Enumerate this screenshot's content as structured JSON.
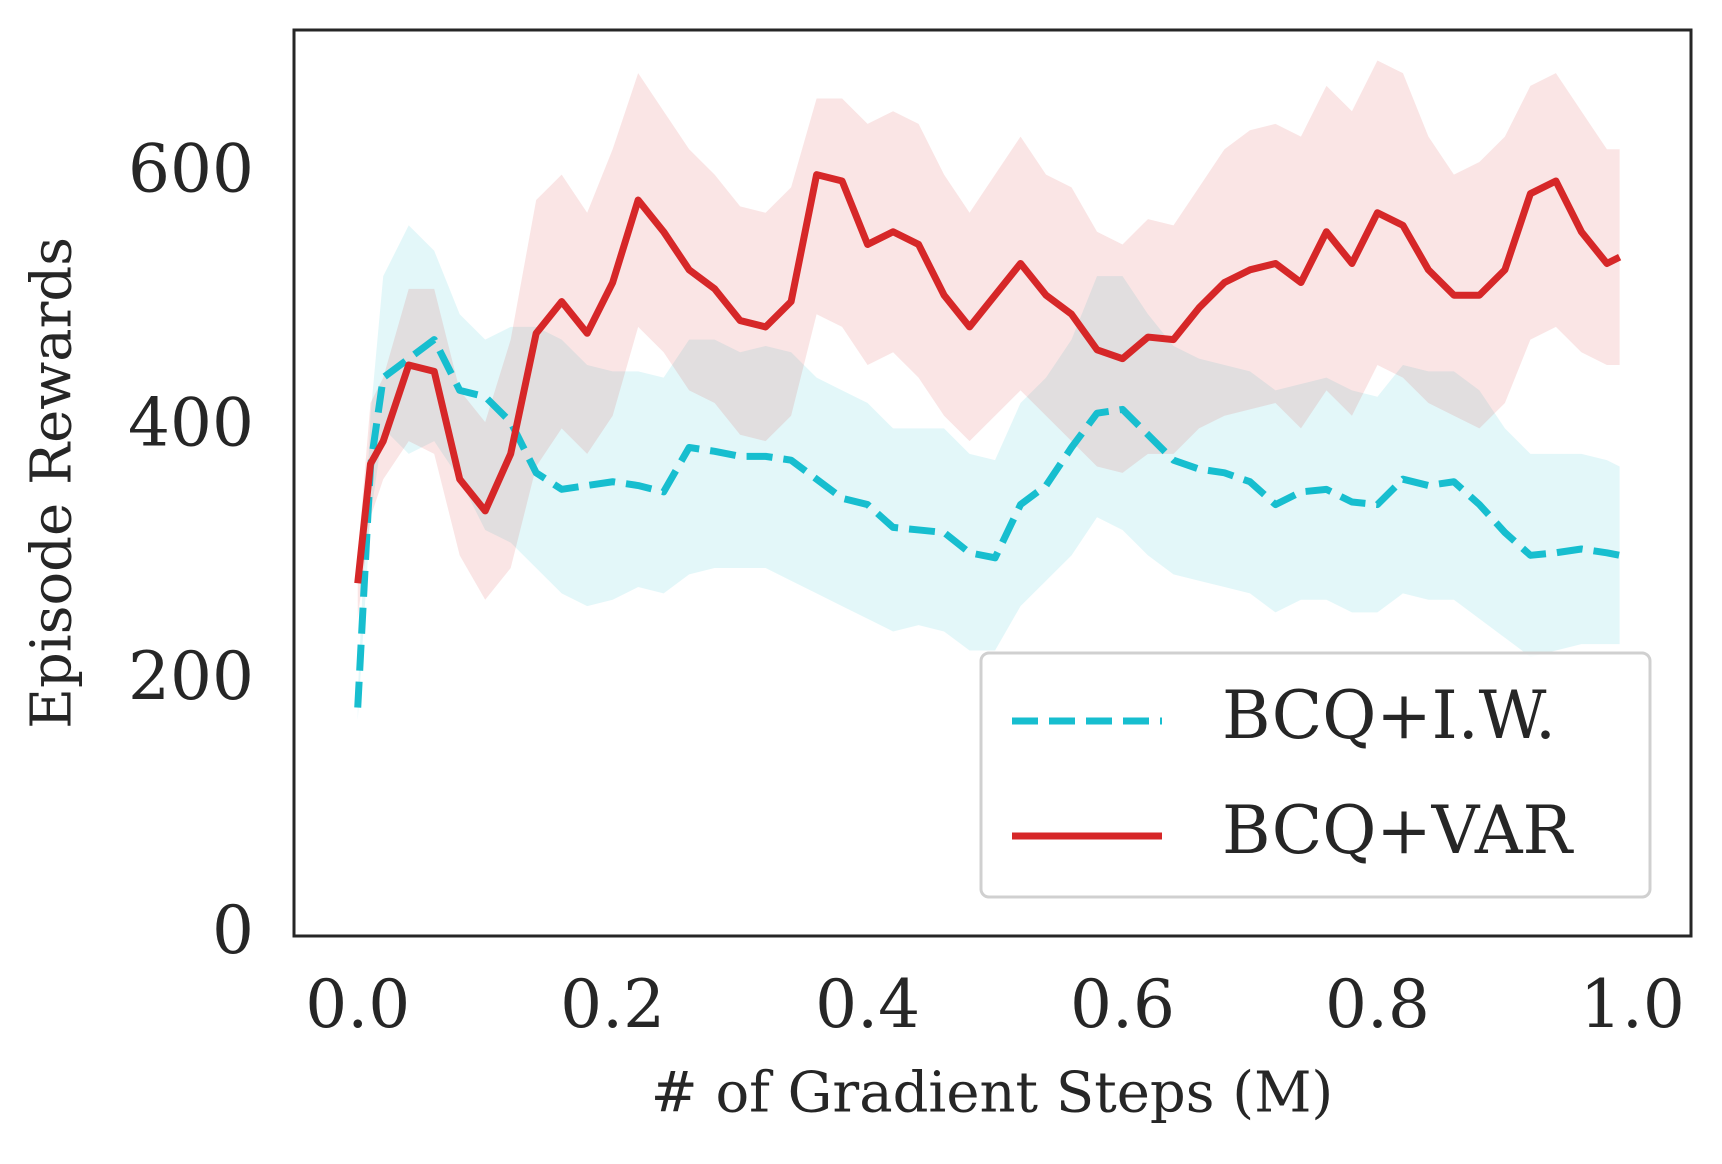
{
  "chart_data": {
    "type": "line",
    "xlabel": "# of Gradient Steps (M)",
    "ylabel": "Episode Rewards",
    "xlim": [
      -0.05,
      1.046
    ],
    "ylim": [
      0,
      714
    ],
    "xticks": [
      {
        "value": 0,
        "label": "0.0"
      },
      {
        "value": 0.2,
        "label": "0.2"
      },
      {
        "value": 0.4,
        "label": "0.4"
      },
      {
        "value": 0.6,
        "label": "0.6"
      },
      {
        "value": 0.8,
        "label": "0.8"
      },
      {
        "value": 1.0,
        "label": "1.0"
      }
    ],
    "yticks": [
      0,
      200,
      400,
      600
    ],
    "legend": "lower right",
    "x": [
      0,
      0.01,
      0.02,
      0.04,
      0.06,
      0.08,
      0.1,
      0.12,
      0.14,
      0.16,
      0.18,
      0.2,
      0.22,
      0.24,
      0.26,
      0.28,
      0.3,
      0.32,
      0.34,
      0.36,
      0.38,
      0.4,
      0.42,
      0.44,
      0.46,
      0.48,
      0.5,
      0.52,
      0.54,
      0.56,
      0.58,
      0.6,
      0.62,
      0.64,
      0.66,
      0.68,
      0.7,
      0.72,
      0.74,
      0.76,
      0.78,
      0.8,
      0.82,
      0.84,
      0.86,
      0.88,
      0.9,
      0.92,
      0.94,
      0.96,
      0.98,
      0.99
    ],
    "series": [
      {
        "name": "BCQ+I.W.",
        "color": "#17becf",
        "dash": true,
        "values": [
          180,
          370,
          440,
          455,
          470,
          430,
          425,
          405,
          365,
          352,
          355,
          358,
          355,
          350,
          385,
          382,
          378,
          378,
          375,
          360,
          345,
          340,
          322,
          320,
          318,
          302,
          298,
          340,
          355,
          385,
          412,
          415,
          395,
          375,
          368,
          365,
          358,
          340,
          350,
          352,
          342,
          340,
          360,
          355,
          358,
          340,
          318,
          300,
          302,
          305,
          302,
          300
        ],
        "lower": [
          170,
          330,
          400,
          380,
          390,
          360,
          320,
          310,
          290,
          270,
          260,
          265,
          275,
          270,
          285,
          290,
          290,
          290,
          280,
          270,
          260,
          250,
          240,
          245,
          240,
          225,
          225,
          260,
          280,
          300,
          330,
          320,
          300,
          285,
          280,
          275,
          270,
          255,
          265,
          265,
          255,
          255,
          270,
          265,
          265,
          250,
          235,
          220,
          225,
          230,
          230,
          230
        ],
        "upper": [
          190,
          410,
          520,
          560,
          540,
          490,
          470,
          480,
          480,
          470,
          450,
          445,
          445,
          440,
          470,
          470,
          460,
          465,
          460,
          440,
          430,
          420,
          400,
          400,
          400,
          380,
          375,
          420,
          440,
          470,
          520,
          520,
          490,
          465,
          455,
          450,
          445,
          430,
          435,
          440,
          430,
          425,
          450,
          445,
          445,
          430,
          400,
          380,
          380,
          380,
          375,
          370
        ]
      },
      {
        "name": "BCQ+VAR",
        "color": "#d62728",
        "dash": false,
        "values": [
          278,
          372,
          390,
          450,
          445,
          360,
          335,
          380,
          475,
          500,
          475,
          515,
          580,
          555,
          525,
          510,
          485,
          480,
          500,
          600,
          595,
          545,
          555,
          545,
          505,
          480,
          505,
          530,
          505,
          490,
          462,
          455,
          472,
          470,
          495,
          515,
          525,
          530,
          515,
          555,
          530,
          570,
          560,
          525,
          505,
          505,
          525,
          585,
          595,
          555,
          530,
          535
        ],
        "lower": [
          250,
          330,
          360,
          390,
          380,
          300,
          265,
          290,
          370,
          400,
          380,
          410,
          480,
          460,
          430,
          420,
          395,
          390,
          410,
          490,
          480,
          450,
          460,
          440,
          410,
          390,
          410,
          430,
          410,
          390,
          370,
          365,
          380,
          380,
          400,
          410,
          415,
          420,
          400,
          430,
          410,
          450,
          440,
          420,
          410,
          400,
          420,
          470,
          480,
          460,
          450,
          450
        ],
        "upper": [
          300,
          420,
          440,
          510,
          510,
          430,
          405,
          470,
          580,
          600,
          570,
          620,
          680,
          650,
          620,
          600,
          575,
          570,
          590,
          660,
          660,
          640,
          650,
          640,
          600,
          570,
          600,
          630,
          600,
          590,
          555,
          545,
          565,
          560,
          590,
          620,
          635,
          640,
          630,
          670,
          650,
          690,
          680,
          630,
          600,
          610,
          630,
          670,
          680,
          650,
          620,
          620
        ]
      }
    ]
  }
}
